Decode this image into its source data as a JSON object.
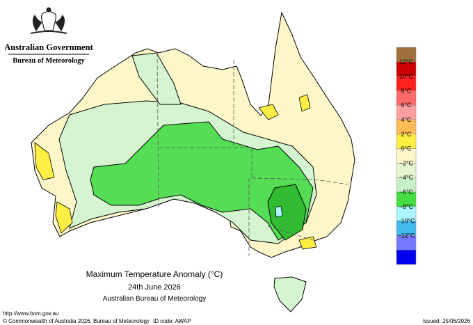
{
  "header": {
    "agency": "Australian Government",
    "bureau": "Bureau of Meteorology"
  },
  "map": {
    "title": "Maximum Temperature Anomaly (°C)",
    "date": "24th June 2026",
    "source": "Australian Bureau of Meteorology"
  },
  "legend": {
    "colors": [
      "#a0703c",
      "#cc0000",
      "#ff2020",
      "#ff6a6a",
      "#ffa0a0",
      "#ffbb55",
      "#ffee44",
      "#fdf6c8",
      "#e6f5d0",
      "#c8f0c8",
      "#44dd44",
      "#aaf5ff",
      "#44bbee",
      "#7777ff",
      "#0000ee"
    ],
    "labels": [
      "12°C",
      "10°C",
      "8°C",
      "6°C",
      "4°C",
      "2°C",
      "0°C",
      "−2°C",
      "−4°C",
      "−6°C",
      "−8°C",
      "−10°C",
      "−12°C"
    ]
  },
  "footer": {
    "url": "http://www.bom.gov.au",
    "copyright": "© Commonwealth of Australia 2026, Bureau of Meteorology",
    "id_code": "ID code: AWAP",
    "issued": "Issued: 25/06/2026"
  }
}
